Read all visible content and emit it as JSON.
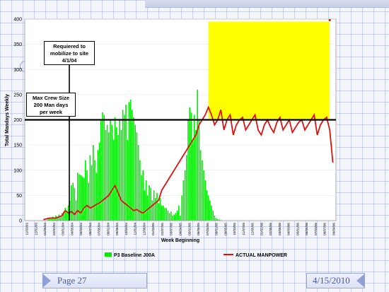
{
  "annotations": {
    "mobilize": "Requiered to mobilize to site 4/1/04",
    "max_crew": "Max Crew Size 200 Man days per week"
  },
  "footer": {
    "page_label": "Page 27",
    "date": "4/15/2010"
  },
  "colors": {
    "baseline": "#00ee00",
    "actual": "#dd1111",
    "highlight": "#ffff00",
    "threshold": "#000000"
  },
  "chart_data": {
    "type": "bar",
    "xlabel": "Week Beginning",
    "ylabel": "Total Mandays Weekly",
    "ylim": [
      0,
      400
    ],
    "yticks": [
      0,
      50,
      100,
      150,
      200,
      250,
      300,
      350,
      400
    ],
    "x_tick_labels": [
      "11/03/03",
      "12/01/03",
      "01/05/04",
      "02/02/04",
      "03/01/04",
      "04/05/04",
      "05/03/04",
      "06/07/04",
      "07/05/04",
      "08/02/04",
      "09/06/04",
      "10/04/04",
      "11/01/04",
      "12/06/04",
      "01/03/05",
      "02/07/05",
      "03/07/05",
      "04/04/05",
      "05/02/05",
      "06/06/05",
      "07/04/05",
      "08/01/05",
      "09/05/05",
      "10/03/05",
      "11/07/05",
      "12/05/05",
      "01/02/06",
      "02/06/06",
      "03/06/06",
      "04/03/06",
      "05/01/06",
      "06/05/06",
      "07/03/06",
      "08/07/06",
      "09/04/06"
    ],
    "legend": [
      "P3 Baseline J00A",
      "ACTUAL MANPOWER"
    ],
    "threshold": 200,
    "highlight_range": {
      "x_start": 118,
      "x_end": 196,
      "y_min": 200,
      "y_max": 395
    },
    "x_count": 200,
    "series": [
      {
        "name": "P3 Baseline J00A",
        "type": "bar",
        "x": [
          15,
          16,
          17,
          18,
          19,
          20,
          21,
          22,
          23,
          24,
          25,
          26,
          27,
          28,
          29,
          30,
          31,
          32,
          33,
          34,
          35,
          36,
          37,
          38,
          39,
          40,
          41,
          42,
          43,
          44,
          45,
          46,
          47,
          48,
          49,
          50,
          51,
          52,
          53,
          54,
          55,
          56,
          57,
          58,
          59,
          60,
          61,
          62,
          63,
          64,
          65,
          66,
          67,
          68,
          69,
          70,
          71,
          72,
          73,
          74,
          75,
          76,
          77,
          78,
          79,
          80,
          81,
          82,
          83,
          84,
          85,
          86,
          87,
          88,
          89,
          90,
          91,
          92,
          93,
          94,
          95,
          96,
          97,
          98,
          99,
          100,
          101,
          102,
          103,
          104,
          105,
          106,
          107,
          108,
          109,
          110,
          111,
          112,
          113,
          114,
          115,
          116,
          117,
          118,
          119,
          120,
          121,
          122,
          123,
          124,
          125,
          126
        ],
        "values": [
          3,
          4,
          6,
          8,
          6,
          10,
          8,
          12,
          10,
          15,
          18,
          25,
          20,
          30,
          40,
          70,
          75,
          65,
          40,
          95,
          92,
          90,
          88,
          85,
          120,
          100,
          75,
          130,
          110,
          150,
          120,
          95,
          140,
          155,
          200,
          215,
          210,
          180,
          190,
          175,
          200,
          190,
          160,
          205,
          185,
          170,
          200,
          180,
          220,
          210,
          230,
          160,
          235,
          240,
          220,
          205,
          190,
          175,
          150,
          120,
          90,
          100,
          60,
          80,
          50,
          70,
          65,
          40,
          60,
          45,
          55,
          35,
          45,
          30,
          30,
          25,
          25,
          20,
          15,
          18,
          10,
          12,
          15,
          20,
          30,
          10,
          50,
          80,
          100,
          130,
          200,
          225,
          215,
          160,
          210,
          180,
          260,
          200,
          140,
          120,
          100,
          80,
          60,
          50,
          40,
          30,
          20,
          10,
          5,
          3,
          2,
          1
        ]
      },
      {
        "name": "ACTUAL MANPOWER",
        "type": "line",
        "x": [
          12,
          16,
          20,
          24,
          26,
          28,
          30,
          32,
          34,
          36,
          38,
          40,
          42,
          44,
          46,
          48,
          50,
          52,
          54,
          56,
          58,
          60,
          62,
          64,
          66,
          68,
          70,
          72,
          74,
          76,
          78,
          80,
          82,
          84,
          86,
          88,
          90,
          92,
          94,
          96,
          98,
          100,
          102,
          104,
          106,
          108,
          110,
          112,
          114,
          116,
          118,
          120,
          122,
          124,
          126,
          128,
          130,
          132,
          134,
          136,
          138,
          140,
          142,
          144,
          146,
          148,
          150,
          152,
          154,
          156,
          158,
          160,
          162,
          164,
          166,
          168,
          170,
          172,
          174,
          176,
          178,
          180,
          182,
          184,
          186,
          188,
          190,
          192,
          194,
          196,
          198
        ],
        "values": [
          2,
          5,
          5,
          10,
          20,
          15,
          18,
          12,
          20,
          15,
          25,
          30,
          25,
          28,
          32,
          35,
          40,
          45,
          50,
          60,
          70,
          55,
          40,
          35,
          30,
          25,
          20,
          22,
          18,
          15,
          20,
          25,
          30,
          35,
          40,
          60,
          70,
          80,
          90,
          100,
          110,
          120,
          130,
          140,
          150,
          160,
          170,
          190,
          200,
          210,
          225,
          210,
          190,
          200,
          220,
          180,
          200,
          210,
          170,
          190,
          200,
          205,
          180,
          190,
          200,
          210,
          180,
          170,
          190,
          200,
          185,
          175,
          195,
          205,
          180,
          190,
          200,
          175,
          185,
          195,
          200,
          180,
          190,
          200,
          210,
          170,
          190,
          200,
          205,
          180,
          115
        ]
      }
    ]
  }
}
